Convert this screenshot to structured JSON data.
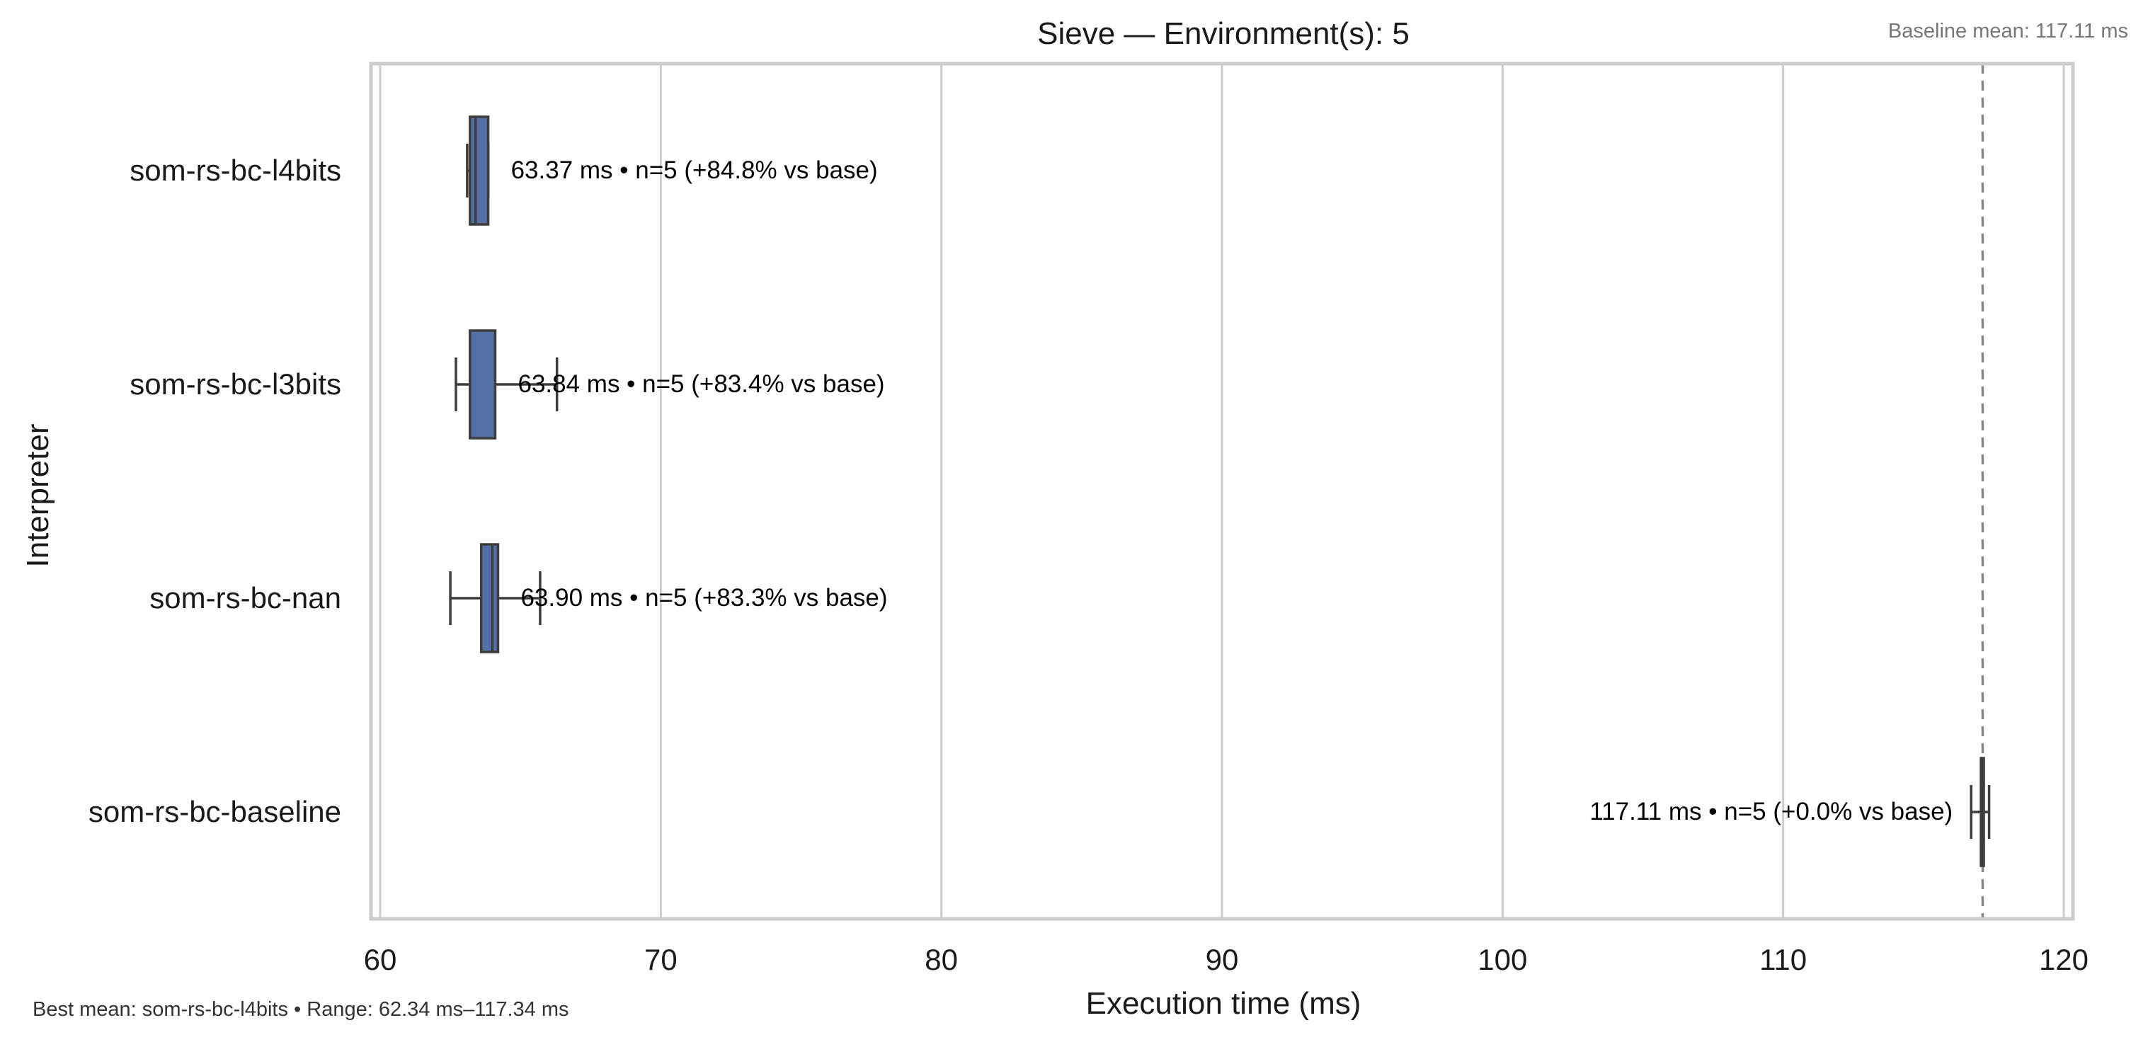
{
  "chart_data": {
    "type": "boxplot",
    "title": "Sieve — Environment(s): 5",
    "baseline_note": "Baseline mean: 117.11 ms",
    "footer_note": "Best mean: som-rs-bc-l4bits • Range: 62.34 ms–117.34 ms",
    "xlabel": "Execution time (ms)",
    "ylabel": "Interpreter",
    "xlim": [
      60,
      120
    ],
    "xticks": [
      60,
      70,
      80,
      90,
      100,
      110,
      120
    ],
    "grid": "vertical",
    "baseline_mean": 117.11,
    "colors": {
      "box_fill": "#5470a6",
      "box_edge": "#3d3d3d",
      "grid": "#cccccc",
      "frame": "#cccccc",
      "baseline_line": "#888888",
      "note_text": "#777777",
      "footer_text": "#333333"
    },
    "series": [
      {
        "category": "som-rs-bc-l4bits",
        "whisker_low": 63.1,
        "q1": 63.2,
        "median": 63.4,
        "q3": 63.85,
        "whisker_high": 63.85,
        "label": "63.37 ms • n=5 (+84.8% vs base)",
        "label_side": "right"
      },
      {
        "category": "som-rs-bc-l3bits",
        "whisker_low": 62.7,
        "q1": 63.2,
        "median": 63.2,
        "q3": 64.1,
        "whisker_high": 66.3,
        "label": "63.84 ms • n=5 (+83.4% vs base)",
        "label_side": "right"
      },
      {
        "category": "som-rs-bc-nan",
        "whisker_low": 62.5,
        "q1": 63.6,
        "median": 64.0,
        "q3": 64.2,
        "whisker_high": 65.7,
        "label": "63.90 ms • n=5 (+83.3% vs base)",
        "label_side": "right"
      },
      {
        "category": "som-rs-bc-baseline",
        "whisker_low": 116.7,
        "q1": 117.05,
        "median": 117.1,
        "q3": 117.15,
        "whisker_high": 117.34,
        "label": "117.11 ms • n=5 (+0.0% vs base)",
        "label_side": "left"
      }
    ]
  }
}
